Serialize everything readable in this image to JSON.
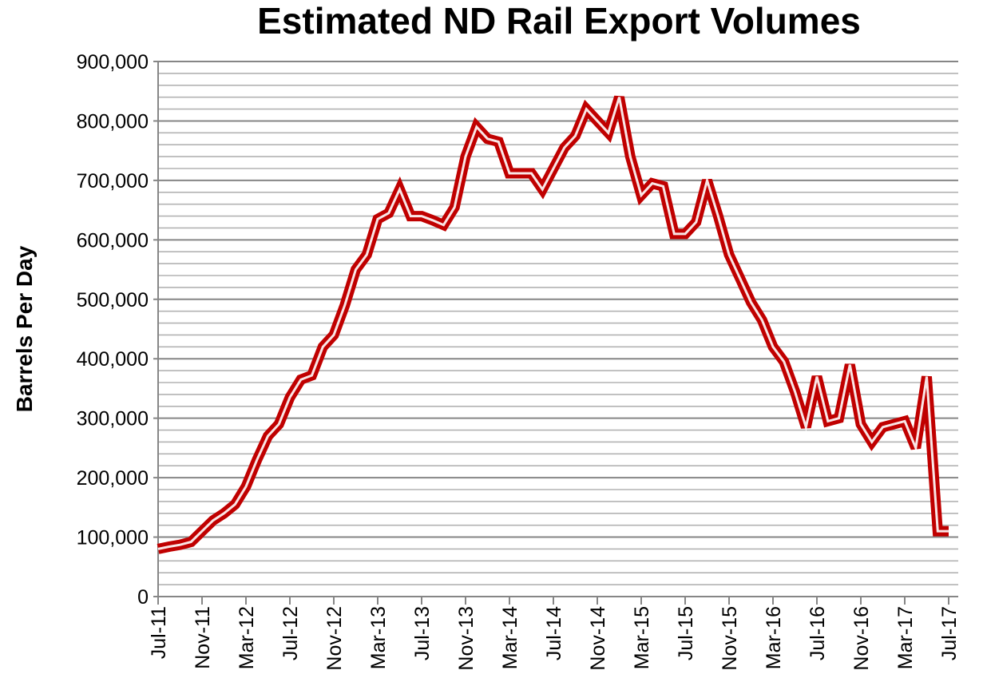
{
  "chart_data": {
    "type": "line",
    "title": "Estimated ND Rail Export Volumes",
    "xlabel": "",
    "ylabel": "Barrels Per Day",
    "ylim": [
      0,
      900000
    ],
    "y_major_step": 100000,
    "y_minor_step": 20000,
    "grid": true,
    "y_tick_labels": [
      "0",
      "100,000",
      "200,000",
      "300,000",
      "400,000",
      "500,000",
      "600,000",
      "700,000",
      "800,000",
      "900,000"
    ],
    "x_tick_labels": [
      "Jul-11",
      "Nov-11",
      "Mar-12",
      "Jul-12",
      "Nov-12",
      "Mar-13",
      "Jul-13",
      "Nov-13",
      "Mar-14",
      "Jul-14",
      "Nov-14",
      "Mar-15",
      "Jul-15",
      "Nov-15",
      "Mar-16",
      "Jul-16",
      "Nov-16",
      "Mar-17",
      "Jul-17"
    ],
    "x_start": "Jul-11",
    "x_end": "Jul-17",
    "x_unit": "month",
    "series": [
      {
        "color": "#C00000",
        "values": [
          80000,
          84000,
          87000,
          92000,
          110000,
          128000,
          140000,
          155000,
          185000,
          230000,
          270000,
          290000,
          335000,
          365000,
          372000,
          420000,
          440000,
          490000,
          550000,
          575000,
          635000,
          645000,
          685000,
          640000,
          640000,
          633000,
          625000,
          655000,
          740000,
          790000,
          770000,
          765000,
          712000,
          712000,
          712000,
          685000,
          720000,
          755000,
          775000,
          820000,
          800000,
          780000,
          840000,
          740000,
          675000,
          695000,
          690000,
          610000,
          610000,
          630000,
          700000,
          640000,
          575000,
          535000,
          495000,
          465000,
          420000,
          395000,
          345000,
          285000,
          370000,
          295000,
          300000,
          390000,
          290000,
          260000,
          285000,
          290000,
          295000,
          250000,
          370000,
          110000,
          110000
        ]
      }
    ]
  }
}
